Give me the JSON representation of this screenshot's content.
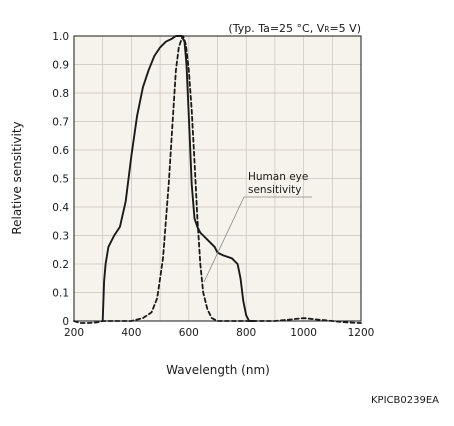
{
  "chart_data": {
    "type": "line",
    "title": "",
    "conditions_text": "(Typ. Ta=25 °C, V",
    "conditions_sub": "R",
    "conditions_tail": "=5 V)",
    "xlabel": "Wavelength (nm)",
    "ylabel": "Relative sensitivity",
    "xlim": [
      200,
      1200
    ],
    "ylim": [
      0,
      1.0
    ],
    "x_ticks": [
      200,
      400,
      600,
      800,
      1000,
      1200
    ],
    "x_tick_labels": [
      "200",
      "400",
      "600",
      "800",
      "1000",
      "1200"
    ],
    "y_ticks": [
      0,
      0.1,
      0.2,
      0.3,
      0.4,
      0.5,
      0.6,
      0.7,
      0.8,
      0.9,
      1.0
    ],
    "y_tick_labels": [
      "0",
      "0.1",
      "0.2",
      "0.3",
      "0.4",
      "0.5",
      "0.6",
      "0.7",
      "0.8",
      "0.9",
      "1.0"
    ],
    "grid": true,
    "minor_grid_step_x": 100,
    "background_color": "#f6f3ec",
    "line_color": "#1a1a1a",
    "annotation_lines": [
      "Human eye",
      "sensitivity"
    ],
    "footer_code": "KPICB0239EA",
    "series": [
      {
        "style": "solid",
        "x": [
          300,
          305,
          310,
          320,
          340,
          360,
          380,
          400,
          420,
          440,
          460,
          480,
          500,
          520,
          540,
          555,
          565,
          575,
          585,
          592,
          600,
          610,
          620,
          630,
          640,
          650,
          670,
          690,
          700,
          720,
          750,
          770,
          780,
          790,
          800,
          810,
          830
        ],
        "y": [
          0.0,
          0.14,
          0.2,
          0.26,
          0.3,
          0.33,
          0.42,
          0.58,
          0.72,
          0.82,
          0.88,
          0.93,
          0.96,
          0.98,
          0.99,
          1.0,
          1.0,
          1.0,
          0.98,
          0.9,
          0.72,
          0.48,
          0.36,
          0.33,
          0.31,
          0.3,
          0.28,
          0.26,
          0.24,
          0.23,
          0.22,
          0.2,
          0.15,
          0.07,
          0.02,
          0.0,
          0.0
        ]
      },
      {
        "style": "dashed",
        "x": [
          200,
          220,
          250,
          280,
          300,
          400,
          440,
          470,
          490,
          510,
          530,
          545,
          555,
          565,
          575,
          580,
          590,
          600,
          610,
          620,
          630,
          640,
          650,
          665,
          680,
          700,
          720,
          750,
          780,
          800,
          850,
          900,
          950,
          1000,
          1050,
          1100,
          1150,
          1200
        ],
        "y": [
          0.0,
          -0.01,
          -0.01,
          -0.005,
          0.0,
          0.0,
          0.01,
          0.03,
          0.08,
          0.22,
          0.48,
          0.72,
          0.88,
          0.96,
          0.99,
          1.0,
          0.97,
          0.88,
          0.74,
          0.56,
          0.36,
          0.2,
          0.1,
          0.04,
          0.01,
          0.0,
          0.0,
          0.0,
          0.0,
          0.0,
          0.0,
          0.0,
          0.005,
          0.01,
          0.005,
          0.0,
          -0.005,
          -0.01
        ]
      }
    ]
  }
}
